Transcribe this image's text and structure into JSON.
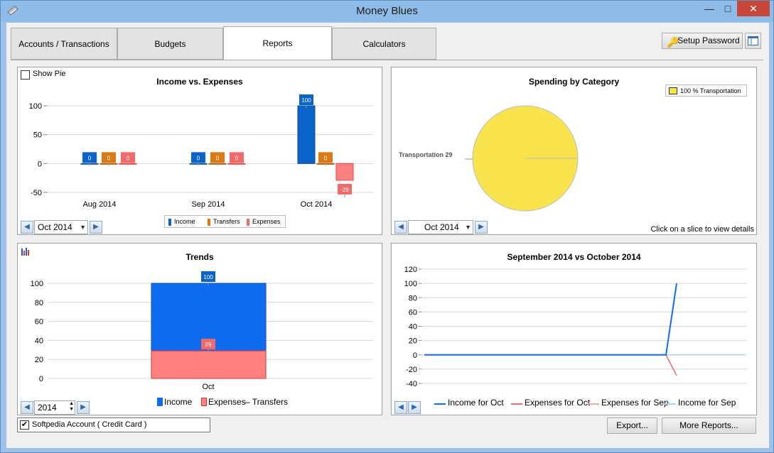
{
  "window": {
    "title": "Money Blues",
    "minimize": "—",
    "maximize": "□",
    "close": "✕"
  },
  "tabs": [
    {
      "label": "Accounts / Transactions"
    },
    {
      "label": "Budgets"
    },
    {
      "label": "Reports"
    },
    {
      "label": "Calculators"
    }
  ],
  "toolbar": {
    "setup_password": "Setup Password"
  },
  "income_expenses": {
    "show_pie_label": "Show Pie",
    "month_select": "Oct 2014",
    "legend": [
      "Income",
      "Transfers",
      "Expenses"
    ]
  },
  "spending": {
    "legend_label": "100 % Transportation",
    "slice_label": "Transportation 29",
    "month_select": "Oct 2014",
    "hint": "Click on a slice to view details"
  },
  "trends": {
    "year_value": "2014",
    "legend_income": "Income",
    "legend_expenses": "Expenses",
    "legend_transfers": "– Transfers"
  },
  "compare": {
    "legend": [
      "Income for Oct",
      "Expenses for Oct",
      "Expenses for Sep",
      "Income for Sep"
    ]
  },
  "account": {
    "label": "Softpedia Account ( Credit Card )"
  },
  "buttons": {
    "export": "Export...",
    "more_reports": "More Reports..."
  },
  "colors": {
    "income": "#0a63c9",
    "transfers": "#d97a14",
    "expenses": "#f2696b",
    "trend_income": "#0f6cf0",
    "trend_expenses": "#ff8080",
    "pie": "#f9e44d"
  },
  "chart_data": [
    {
      "type": "bar",
      "title": "Income vs. Expenses",
      "categories": [
        "Aug 2014",
        "Sep 2014",
        "Oct 2014"
      ],
      "series": [
        {
          "name": "Income",
          "values": [
            0,
            0,
            100
          ]
        },
        {
          "name": "Transfers",
          "values": [
            0,
            0,
            0
          ]
        },
        {
          "name": "Expenses",
          "values": [
            0,
            0,
            -29
          ]
        }
      ],
      "yticks": [
        100,
        50,
        0,
        -50
      ],
      "ylim": [
        -50,
        100
      ]
    },
    {
      "type": "pie",
      "title": "Spending by Category",
      "labels": [
        "Transportation"
      ],
      "values": [
        29
      ],
      "percent": [
        100
      ]
    },
    {
      "type": "bar",
      "title": "Trends",
      "categories": [
        "Oct"
      ],
      "series": [
        {
          "name": "Income",
          "values": [
            100
          ]
        },
        {
          "name": "Expenses",
          "values": [
            29
          ]
        }
      ],
      "yticks": [
        100,
        80,
        60,
        40,
        20,
        0
      ],
      "ylim": [
        0,
        100
      ]
    },
    {
      "type": "line",
      "title": "September 2014 vs October 2014",
      "yticks": [
        120,
        100,
        80,
        60,
        40,
        20,
        0,
        -20,
        -40
      ],
      "ylim": [
        -40,
        120
      ],
      "series": [
        {
          "name": "Income for Oct",
          "values": [
            0,
            0,
            100
          ]
        },
        {
          "name": "Expenses for Oct",
          "values": [
            0,
            0,
            -29
          ]
        },
        {
          "name": "Expenses for Sep",
          "values": [
            0,
            0,
            0
          ]
        },
        {
          "name": "Income for Sep",
          "values": [
            0,
            0,
            0
          ]
        }
      ]
    }
  ]
}
